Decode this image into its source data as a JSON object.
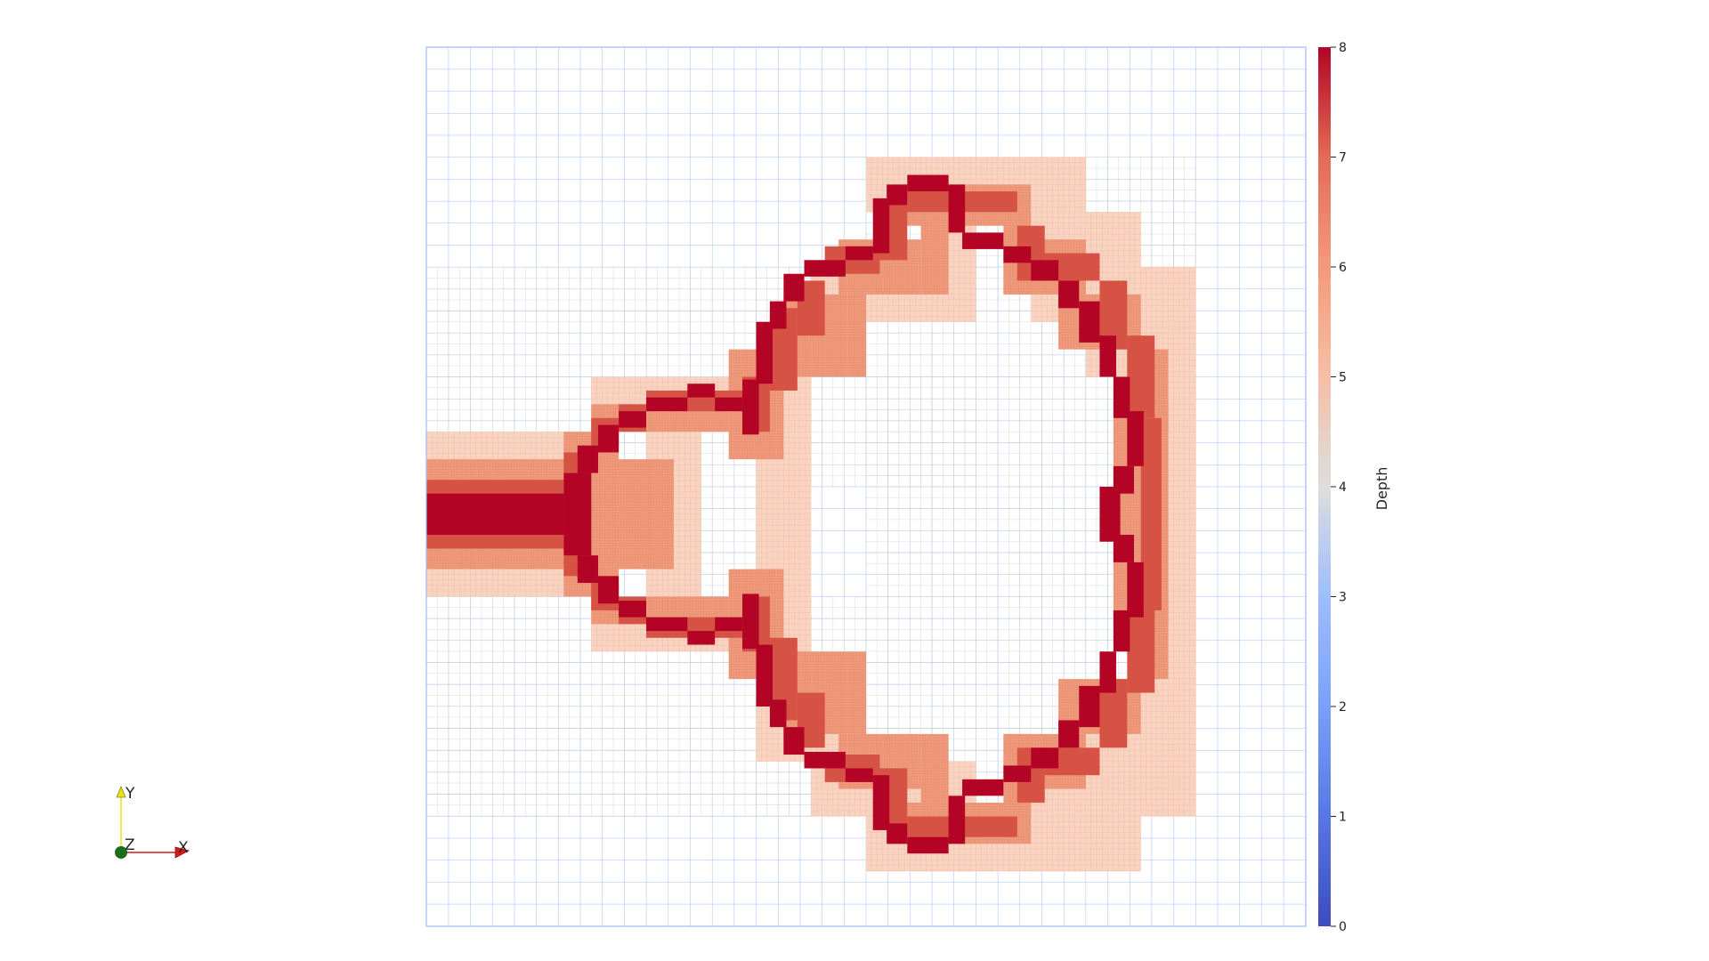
{
  "colorbar": {
    "title": "Depth",
    "range": [
      0,
      8
    ],
    "ticks": [
      "0",
      "1",
      "2",
      "3",
      "4",
      "5",
      "6",
      "7",
      "8"
    ],
    "colormap": "cool-to-warm"
  },
  "axes_gizmo": {
    "x_label": "X",
    "y_label": "Y",
    "z_label": "Z",
    "x_color": "#d61a1a",
    "y_color": "#e8e21c",
    "z_color": "#1a6d1a"
  },
  "depth_colors": {
    "3": "#9dbcf7",
    "4": "#dddcdc",
    "5": "#f5c4ad",
    "6": "#ec8e6f",
    "7": "#d65244",
    "8": "#b40426"
  },
  "mesh": {
    "description": "adaptive quadtree mesh colored by refinement depth",
    "max_depth": 8
  }
}
